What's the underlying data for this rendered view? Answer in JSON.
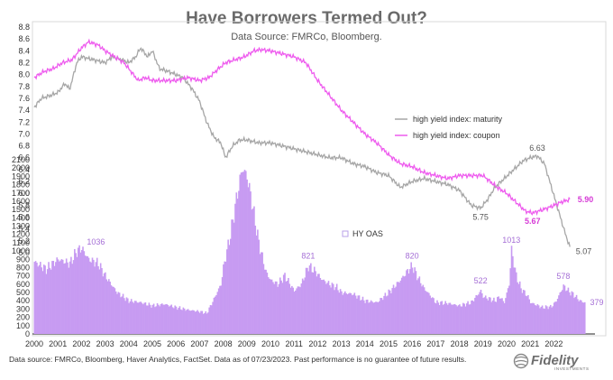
{
  "title": "Have Borrowers Termed Out?",
  "subtitle": "Data Source: FMRCo, Bloomberg.",
  "footnote": "Data source: FMRCo, Bloomberg, Haver Analytics, FactSet. Data as of 07/23/2023. Past performance is no guarantee of future results.",
  "logo_text": "Fidelity",
  "logo_subtext": "INVESTMENTS",
  "colors": {
    "maturity": "#a6a6a6",
    "coupon": "#ee5bee",
    "oas_bar": "#c79bf2",
    "oas_label": "#a56fd6",
    "coupon_label": "#d63ad6"
  },
  "chart_data": {
    "type": "line",
    "x_ticks": [
      "2000",
      "2001",
      "2002",
      "2003",
      "2004",
      "2005",
      "2006",
      "2007",
      "2008",
      "2009",
      "2010",
      "2011",
      "2012",
      "2013",
      "2014",
      "2015",
      "2016",
      "2017",
      "2018",
      "2019",
      "2020",
      "2021",
      "2022"
    ],
    "left_axis": {
      "ticks": [
        "8.8",
        "8.6",
        "8.4",
        "8.2",
        "8.0",
        "7.8",
        "7.6",
        "7.4",
        "7.2",
        "7.0",
        "6.8",
        "6.6",
        "6.4",
        "6.2",
        "6.0",
        "5.8",
        "5.6",
        "5.4",
        "5.2",
        "5.0"
      ],
      "ylim": [
        5.0,
        8.8
      ]
    },
    "right_axis": {
      "ticks": [
        "2100",
        "2000",
        "1900",
        "1800",
        "1700",
        "1600",
        "1500",
        "1400",
        "1300",
        "1200",
        "1100",
        "1000",
        "900",
        "800",
        "700",
        "600",
        "500",
        "400",
        "300",
        "200",
        "100",
        "0"
      ],
      "ylim": [
        0,
        2100
      ]
    },
    "legend": {
      "placement": "right",
      "items": [
        "high yield index: maturity",
        "high yield index: coupon"
      ]
    },
    "series": [
      {
        "name": "high yield index: maturity",
        "axis": "left",
        "points": [
          [
            2000.0,
            7.45
          ],
          [
            2000.3,
            7.6
          ],
          [
            2000.7,
            7.65
          ],
          [
            2001.0,
            7.7
          ],
          [
            2001.3,
            7.85
          ],
          [
            2001.5,
            7.75
          ],
          [
            2001.8,
            8.2
          ],
          [
            2002.0,
            8.3
          ],
          [
            2002.5,
            8.25
          ],
          [
            2003.0,
            8.2
          ],
          [
            2003.3,
            8.3
          ],
          [
            2003.7,
            8.25
          ],
          [
            2004.0,
            8.2
          ],
          [
            2004.3,
            8.3
          ],
          [
            2004.5,
            8.45
          ],
          [
            2004.8,
            8.3
          ],
          [
            2005.0,
            8.4
          ],
          [
            2005.3,
            8.1
          ],
          [
            2005.7,
            8.05
          ],
          [
            2006.0,
            8.0
          ],
          [
            2006.3,
            7.95
          ],
          [
            2006.7,
            7.75
          ],
          [
            2007.0,
            7.55
          ],
          [
            2007.3,
            7.2
          ],
          [
            2007.6,
            6.95
          ],
          [
            2007.9,
            6.85
          ],
          [
            2008.1,
            6.6
          ],
          [
            2008.4,
            6.8
          ],
          [
            2008.7,
            6.9
          ],
          [
            2009.0,
            6.9
          ],
          [
            2009.5,
            6.85
          ],
          [
            2010.0,
            6.85
          ],
          [
            2010.5,
            6.8
          ],
          [
            2011.0,
            6.75
          ],
          [
            2011.5,
            6.7
          ],
          [
            2012.0,
            6.65
          ],
          [
            2012.5,
            6.6
          ],
          [
            2013.0,
            6.6
          ],
          [
            2013.5,
            6.5
          ],
          [
            2014.0,
            6.45
          ],
          [
            2014.5,
            6.35
          ],
          [
            2015.0,
            6.3
          ],
          [
            2015.5,
            6.1
          ],
          [
            2016.0,
            6.2
          ],
          [
            2016.5,
            6.25
          ],
          [
            2017.0,
            6.2
          ],
          [
            2017.5,
            6.15
          ],
          [
            2018.0,
            6.05
          ],
          [
            2018.5,
            5.8
          ],
          [
            2018.9,
            5.75
          ],
          [
            2019.2,
            5.9
          ],
          [
            2019.5,
            6.1
          ],
          [
            2019.9,
            6.25
          ],
          [
            2020.3,
            6.4
          ],
          [
            2020.7,
            6.55
          ],
          [
            2021.0,
            6.6
          ],
          [
            2021.3,
            6.63
          ],
          [
            2021.6,
            6.5
          ],
          [
            2021.9,
            6.1
          ],
          [
            2022.2,
            5.7
          ],
          [
            2022.5,
            5.3
          ],
          [
            2022.7,
            5.07
          ]
        ]
      },
      {
        "name": "high yield index: coupon",
        "axis": "left",
        "points": [
          [
            2000.0,
            7.95
          ],
          [
            2000.4,
            8.05
          ],
          [
            2000.8,
            8.1
          ],
          [
            2001.2,
            8.2
          ],
          [
            2001.6,
            8.25
          ],
          [
            2002.0,
            8.45
          ],
          [
            2002.3,
            8.55
          ],
          [
            2002.7,
            8.5
          ],
          [
            2003.0,
            8.4
          ],
          [
            2003.4,
            8.3
          ],
          [
            2003.8,
            8.2
          ],
          [
            2004.2,
            8.0
          ],
          [
            2004.4,
            7.9
          ],
          [
            2004.7,
            7.95
          ],
          [
            2005.0,
            7.9
          ],
          [
            2005.5,
            7.9
          ],
          [
            2006.0,
            7.9
          ],
          [
            2006.5,
            7.95
          ],
          [
            2007.0,
            7.9
          ],
          [
            2007.4,
            7.95
          ],
          [
            2007.8,
            8.1
          ],
          [
            2008.1,
            8.2
          ],
          [
            2008.5,
            8.25
          ],
          [
            2008.9,
            8.3
          ],
          [
            2009.3,
            8.4
          ],
          [
            2009.6,
            8.42
          ],
          [
            2010.0,
            8.4
          ],
          [
            2010.5,
            8.35
          ],
          [
            2011.0,
            8.3
          ],
          [
            2011.5,
            8.2
          ],
          [
            2012.0,
            7.9
          ],
          [
            2012.5,
            7.65
          ],
          [
            2013.0,
            7.4
          ],
          [
            2013.5,
            7.2
          ],
          [
            2014.0,
            7.0
          ],
          [
            2014.5,
            6.85
          ],
          [
            2015.0,
            6.65
          ],
          [
            2015.5,
            6.5
          ],
          [
            2016.0,
            6.45
          ],
          [
            2016.5,
            6.35
          ],
          [
            2017.0,
            6.3
          ],
          [
            2017.5,
            6.25
          ],
          [
            2018.0,
            6.3
          ],
          [
            2018.5,
            6.3
          ],
          [
            2019.0,
            6.3
          ],
          [
            2019.3,
            6.2
          ],
          [
            2019.6,
            6.1
          ],
          [
            2020.0,
            6.0
          ],
          [
            2020.4,
            5.85
          ],
          [
            2020.8,
            5.7
          ],
          [
            2021.1,
            5.67
          ],
          [
            2021.5,
            5.72
          ],
          [
            2021.9,
            5.78
          ],
          [
            2022.3,
            5.85
          ],
          [
            2022.7,
            5.9
          ]
        ]
      },
      {
        "name": "HY OAS",
        "axis": "right",
        "type": "bar",
        "points": [
          [
            2000.0,
            870
          ],
          [
            2000.5,
            780
          ],
          [
            2001.0,
            900
          ],
          [
            2001.5,
            850
          ],
          [
            2001.8,
            1000
          ],
          [
            2002.0,
            1036
          ],
          [
            2002.3,
            900
          ],
          [
            2002.7,
            850
          ],
          [
            2003.0,
            700
          ],
          [
            2003.5,
            500
          ],
          [
            2004.0,
            400
          ],
          [
            2004.5,
            380
          ],
          [
            2005.0,
            340
          ],
          [
            2005.5,
            360
          ],
          [
            2006.0,
            320
          ],
          [
            2006.5,
            290
          ],
          [
            2007.0,
            270
          ],
          [
            2007.3,
            250
          ],
          [
            2007.6,
            420
          ],
          [
            2007.9,
            600
          ],
          [
            2008.0,
            800
          ],
          [
            2008.3,
            1200
          ],
          [
            2008.6,
            1700
          ],
          [
            2008.8,
            2000
          ],
          [
            2009.0,
            1900
          ],
          [
            2009.2,
            1600
          ],
          [
            2009.5,
            1100
          ],
          [
            2009.8,
            750
          ],
          [
            2010.0,
            650
          ],
          [
            2010.3,
            600
          ],
          [
            2010.6,
            700
          ],
          [
            2011.0,
            520
          ],
          [
            2011.3,
            600
          ],
          [
            2011.6,
            821
          ],
          [
            2011.9,
            750
          ],
          [
            2012.2,
            650
          ],
          [
            2012.5,
            600
          ],
          [
            2012.8,
            560
          ],
          [
            2013.0,
            500
          ],
          [
            2013.5,
            480
          ],
          [
            2014.0,
            400
          ],
          [
            2014.5,
            380
          ],
          [
            2015.0,
            500
          ],
          [
            2015.5,
            650
          ],
          [
            2015.8,
            760
          ],
          [
            2016.0,
            820
          ],
          [
            2016.2,
            700
          ],
          [
            2016.5,
            550
          ],
          [
            2016.8,
            450
          ],
          [
            2017.0,
            380
          ],
          [
            2017.5,
            370
          ],
          [
            2018.0,
            340
          ],
          [
            2018.5,
            380
          ],
          [
            2018.9,
            522
          ],
          [
            2019.0,
            450
          ],
          [
            2019.3,
            420
          ],
          [
            2019.5,
            400
          ],
          [
            2019.7,
            450
          ],
          [
            2019.9,
            380
          ],
          [
            2020.1,
            600
          ],
          [
            2020.2,
            1013
          ],
          [
            2020.4,
            700
          ],
          [
            2020.6,
            550
          ],
          [
            2020.9,
            450
          ],
          [
            2021.0,
            380
          ],
          [
            2021.5,
            320
          ],
          [
            2021.9,
            330
          ],
          [
            2022.1,
            400
          ],
          [
            2022.4,
            578
          ],
          [
            2022.6,
            520
          ],
          [
            2022.8,
            480
          ],
          [
            2023.1,
            400
          ],
          [
            2023.3,
            379
          ]
        ]
      }
    ],
    "annotations": [
      {
        "series": "high yield index: maturity",
        "x": 2021.3,
        "y": 6.63,
        "text": "6.63"
      },
      {
        "series": "high yield index: maturity",
        "x": 2018.9,
        "y": 5.75,
        "text": "5.75"
      },
      {
        "series": "high yield index: maturity",
        "x": 2022.7,
        "y": 5.07,
        "text": "5.07"
      },
      {
        "series": "high yield index: coupon",
        "x": 2021.1,
        "y": 5.67,
        "text": "5.67"
      },
      {
        "series": "high yield index: coupon",
        "x": 2022.7,
        "y": 5.9,
        "text": "5.90"
      },
      {
        "series": "HY OAS",
        "x": 2002.0,
        "y": 1036,
        "text": "1036"
      },
      {
        "series": "HY OAS",
        "x": 2011.6,
        "y": 821,
        "text": "821"
      },
      {
        "series": "HY OAS",
        "x": 2016.0,
        "y": 820,
        "text": "820"
      },
      {
        "series": "HY OAS",
        "x": 2018.9,
        "y": 522,
        "text": "522"
      },
      {
        "series": "HY OAS",
        "x": 2020.2,
        "y": 1013,
        "text": "1013"
      },
      {
        "series": "HY OAS",
        "x": 2022.4,
        "y": 578,
        "text": "578"
      },
      {
        "series": "HY OAS",
        "x": 2023.3,
        "y": 379,
        "text": "379"
      }
    ]
  }
}
